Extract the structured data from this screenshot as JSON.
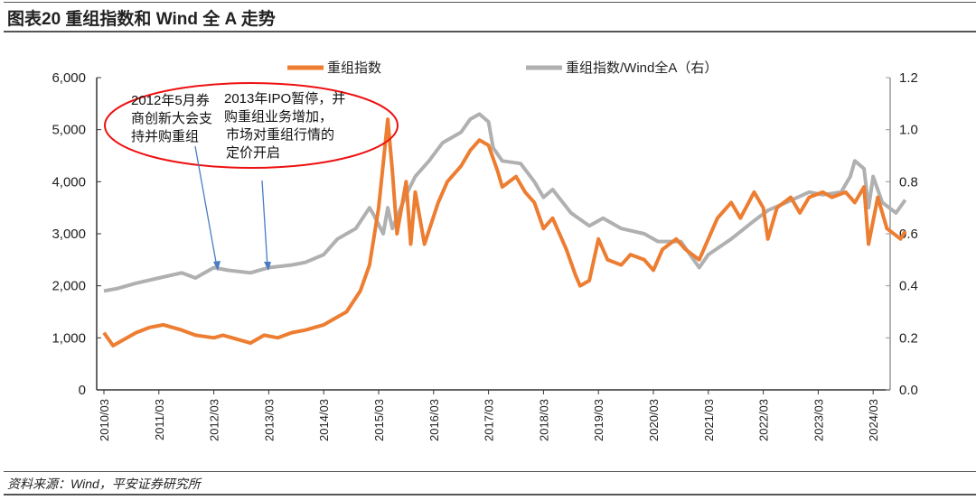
{
  "title": "图表20    重组指数和 Wind 全 A 走势",
  "source": "资料来源：Wind，平安证券研究所",
  "annotations": {
    "a1": [
      "2012年5月券",
      "商创新大会支",
      "持并购重组"
    ],
    "a2": [
      "2013年IPO暂停，并",
      "购重组业务增加，",
      "市场对重组行情的",
      "定价开启"
    ]
  },
  "chart_data": {
    "type": "line",
    "legend_position": "top",
    "grid": false,
    "x_ticks": [
      "2010/03",
      "2011/03",
      "2012/03",
      "2013/03",
      "2014/03",
      "2015/03",
      "2016/03",
      "2017/03",
      "2018/03",
      "2019/03",
      "2020/03",
      "2021/03",
      "2022/03",
      "2023/03",
      "2024/03"
    ],
    "y_left": {
      "ylim": [
        0,
        6000
      ],
      "ticks": [
        "0",
        "1,000",
        "2,000",
        "3,000",
        "4,000",
        "5,000",
        "6,000"
      ]
    },
    "y_right": {
      "ylim": [
        0,
        1.2
      ],
      "ticks": [
        "0.0",
        "0.2",
        "0.4",
        "0.6",
        "0.8",
        "1.0",
        "1.2"
      ]
    },
    "series": [
      {
        "name": "重组指数",
        "axis": "left",
        "color": "#ED7D31",
        "points": [
          [
            "2010/03",
            1100
          ],
          [
            "2010/05",
            850
          ],
          [
            "2010/10",
            1100
          ],
          [
            "2011/01",
            1200
          ],
          [
            "2011/04",
            1250
          ],
          [
            "2011/08",
            1150
          ],
          [
            "2011/11",
            1050
          ],
          [
            "2012/03",
            1000
          ],
          [
            "2012/05",
            1050
          ],
          [
            "2012/09",
            950
          ],
          [
            "2012/11",
            900
          ],
          [
            "2013/02",
            1050
          ],
          [
            "2013/05",
            1000
          ],
          [
            "2013/08",
            1100
          ],
          [
            "2013/11",
            1150
          ],
          [
            "2014/03",
            1250
          ],
          [
            "2014/05",
            1350
          ],
          [
            "2014/08",
            1500
          ],
          [
            "2014/11",
            1900
          ],
          [
            "2015/01",
            2400
          ],
          [
            "2015/03",
            3500
          ],
          [
            "2015/05",
            5200
          ],
          [
            "2015/06",
            4200
          ],
          [
            "2015/07",
            3000
          ],
          [
            "2015/09",
            4000
          ],
          [
            "2015/10",
            2800
          ],
          [
            "2015/11",
            3800
          ],
          [
            "2016/01",
            2800
          ],
          [
            "2016/04",
            3600
          ],
          [
            "2016/06",
            4000
          ],
          [
            "2016/09",
            4300
          ],
          [
            "2016/11",
            4600
          ],
          [
            "2017/01",
            4800
          ],
          [
            "2017/03",
            4700
          ],
          [
            "2017/05",
            4200
          ],
          [
            "2017/06",
            3900
          ],
          [
            "2017/09",
            4100
          ],
          [
            "2017/11",
            3800
          ],
          [
            "2018/01",
            3600
          ],
          [
            "2018/03",
            3100
          ],
          [
            "2018/05",
            3300
          ],
          [
            "2018/08",
            2700
          ],
          [
            "2018/10",
            2200
          ],
          [
            "2018/11",
            2000
          ],
          [
            "2019/01",
            2100
          ],
          [
            "2019/03",
            2900
          ],
          [
            "2019/05",
            2500
          ],
          [
            "2019/08",
            2400
          ],
          [
            "2019/10",
            2600
          ],
          [
            "2020/01",
            2500
          ],
          [
            "2020/03",
            2300
          ],
          [
            "2020/05",
            2700
          ],
          [
            "2020/08",
            2900
          ],
          [
            "2020/10",
            2700
          ],
          [
            "2021/01",
            2500
          ],
          [
            "2021/03",
            2900
          ],
          [
            "2021/05",
            3300
          ],
          [
            "2021/08",
            3600
          ],
          [
            "2021/10",
            3300
          ],
          [
            "2022/01",
            3800
          ],
          [
            "2022/03",
            3500
          ],
          [
            "2022/04",
            2900
          ],
          [
            "2022/06",
            3500
          ],
          [
            "2022/09",
            3700
          ],
          [
            "2022/11",
            3400
          ],
          [
            "2023/01",
            3700
          ],
          [
            "2023/04",
            3800
          ],
          [
            "2023/06",
            3700
          ],
          [
            "2023/09",
            3800
          ],
          [
            "2023/11",
            3600
          ],
          [
            "2024/01",
            3900
          ],
          [
            "2024/02",
            2800
          ],
          [
            "2024/04",
            3700
          ],
          [
            "2024/06",
            3100
          ],
          [
            "2024/09",
            2900
          ],
          [
            "2024/10",
            3050
          ]
        ]
      },
      {
        "name": "重组指数/Wind全A（右）",
        "axis": "right",
        "color": "#B0B0B0",
        "points": [
          [
            "2010/03",
            0.38
          ],
          [
            "2010/06",
            0.39
          ],
          [
            "2010/10",
            0.41
          ],
          [
            "2011/03",
            0.43
          ],
          [
            "2011/08",
            0.45
          ],
          [
            "2011/11",
            0.43
          ],
          [
            "2012/03",
            0.47
          ],
          [
            "2012/06",
            0.46
          ],
          [
            "2012/11",
            0.45
          ],
          [
            "2013/03",
            0.47
          ],
          [
            "2013/08",
            0.48
          ],
          [
            "2013/11",
            0.49
          ],
          [
            "2014/03",
            0.52
          ],
          [
            "2014/06",
            0.58
          ],
          [
            "2014/10",
            0.62
          ],
          [
            "2015/01",
            0.7
          ],
          [
            "2015/02",
            0.67
          ],
          [
            "2015/04",
            0.6
          ],
          [
            "2015/05",
            0.7
          ],
          [
            "2015/06",
            0.62
          ],
          [
            "2015/09",
            0.75
          ],
          [
            "2015/11",
            0.82
          ],
          [
            "2016/02",
            0.88
          ],
          [
            "2016/05",
            0.95
          ],
          [
            "2016/09",
            0.99
          ],
          [
            "2016/11",
            1.04
          ],
          [
            "2017/01",
            1.06
          ],
          [
            "2017/03",
            1.03
          ],
          [
            "2017/04",
            0.93
          ],
          [
            "2017/06",
            0.88
          ],
          [
            "2017/10",
            0.87
          ],
          [
            "2018/01",
            0.8
          ],
          [
            "2018/03",
            0.74
          ],
          [
            "2018/05",
            0.77
          ],
          [
            "2018/09",
            0.68
          ],
          [
            "2019/01",
            0.63
          ],
          [
            "2019/04",
            0.66
          ],
          [
            "2019/08",
            0.62
          ],
          [
            "2020/01",
            0.6
          ],
          [
            "2020/04",
            0.57
          ],
          [
            "2020/09",
            0.57
          ],
          [
            "2021/01",
            0.47
          ],
          [
            "2021/03",
            0.52
          ],
          [
            "2021/08",
            0.58
          ],
          [
            "2022/01",
            0.65
          ],
          [
            "2022/04",
            0.69
          ],
          [
            "2022/08",
            0.72
          ],
          [
            "2023/01",
            0.76
          ],
          [
            "2023/04",
            0.75
          ],
          [
            "2023/08",
            0.76
          ],
          [
            "2023/10",
            0.82
          ],
          [
            "2023/11",
            0.88
          ],
          [
            "2024/01",
            0.85
          ],
          [
            "2024/02",
            0.7
          ],
          [
            "2024/03",
            0.82
          ],
          [
            "2024/05",
            0.72
          ],
          [
            "2024/08",
            0.68
          ],
          [
            "2024/10",
            0.73
          ]
        ]
      }
    ]
  }
}
